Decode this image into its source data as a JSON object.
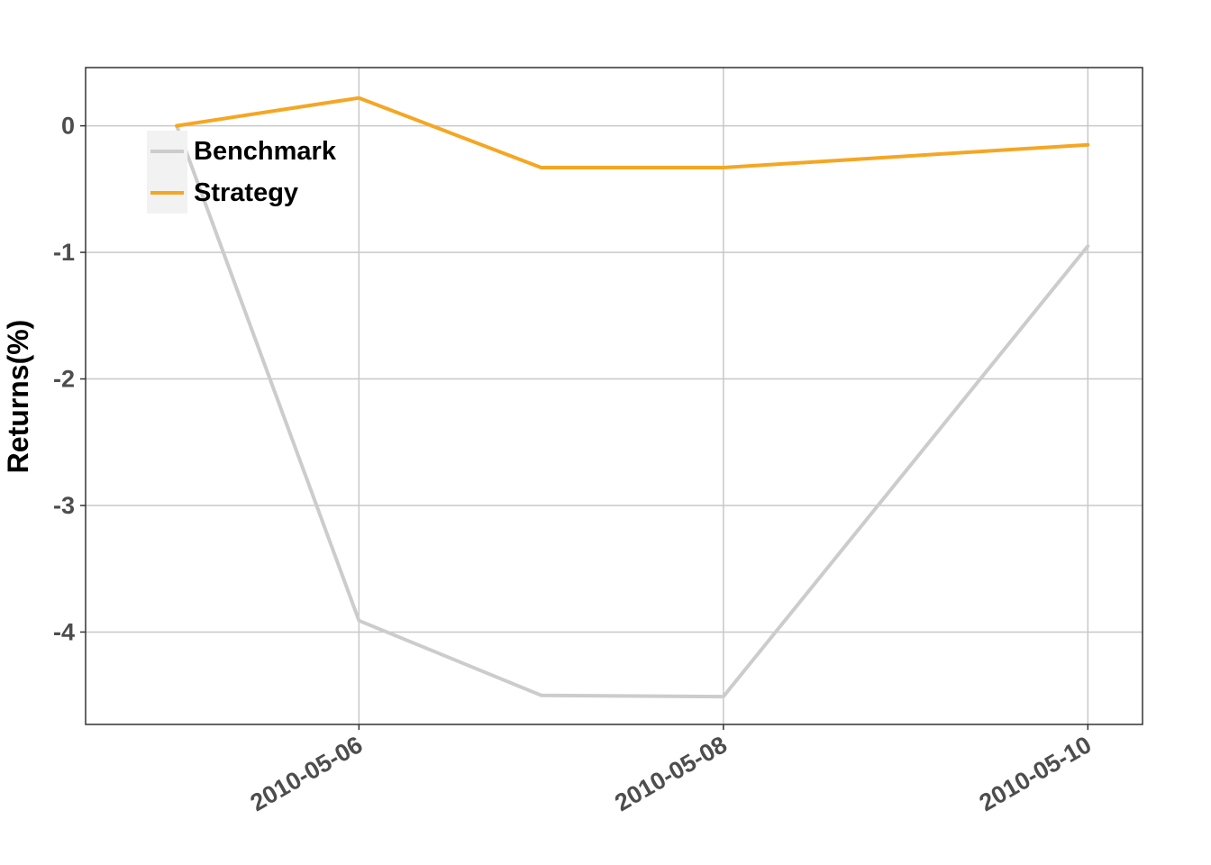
{
  "chart_data": {
    "type": "line",
    "x": [
      "2010-05-05",
      "2010-05-06",
      "2010-05-07",
      "2010-05-08",
      "2010-05-10"
    ],
    "x_tick_labels": [
      "2010-05-06",
      "2010-05-08",
      "2010-05-10"
    ],
    "series": [
      {
        "name": "Benchmark",
        "color": "#cccccc",
        "values": [
          0,
          -3.91,
          -4.5,
          -4.51,
          -0.95
        ]
      },
      {
        "name": "Strategy",
        "color": "#f5a623",
        "values": [
          0,
          0.22,
          -0.33,
          -0.33,
          -0.15
        ]
      }
    ],
    "title": "",
    "xlabel": "",
    "ylabel": "Returns(%)",
    "ylim": [
      -4.73,
      0.46
    ],
    "y_ticks": [
      0,
      -1,
      -2,
      -3,
      -4
    ],
    "x_range": [
      "2010-05-04",
      "2010-05-10"
    ],
    "grid": true,
    "legend_position": "top-left"
  }
}
